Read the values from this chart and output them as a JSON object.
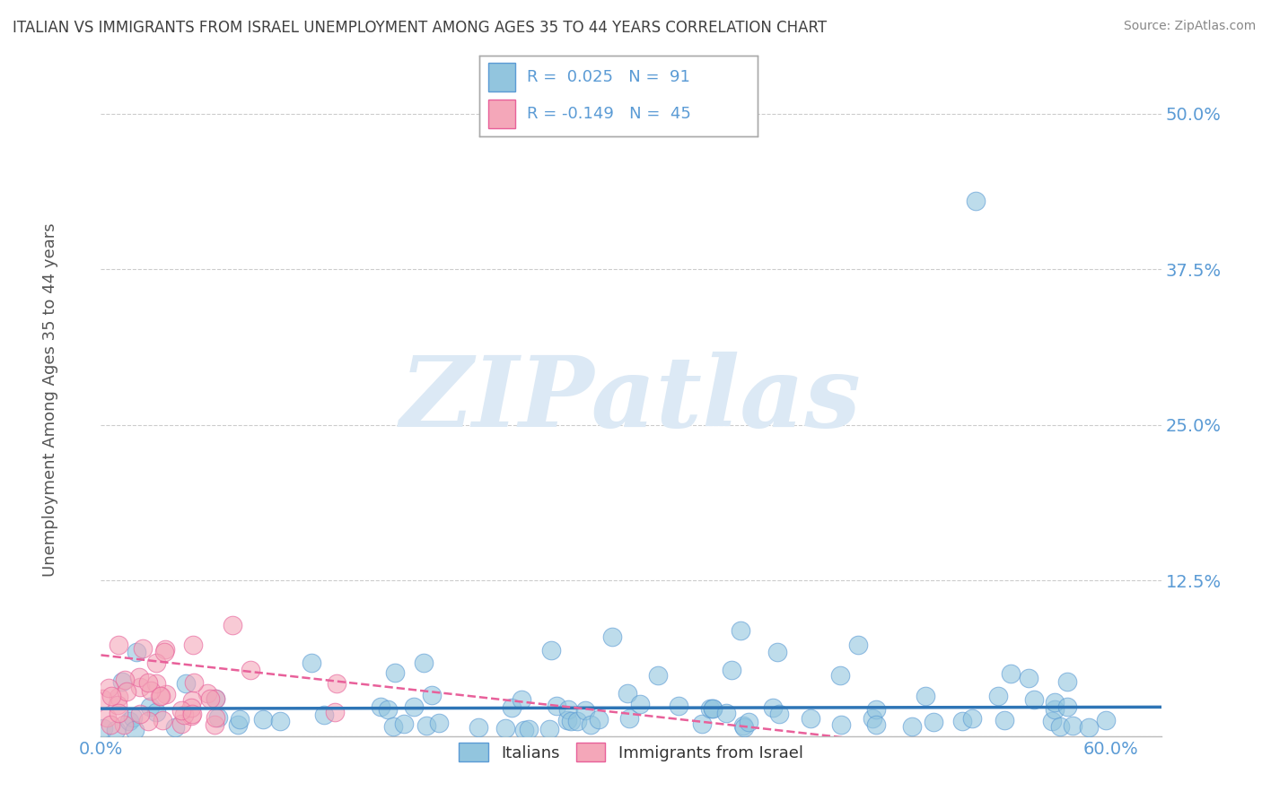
{
  "title": "ITALIAN VS IMMIGRANTS FROM ISRAEL UNEMPLOYMENT AMONG AGES 35 TO 44 YEARS CORRELATION CHART",
  "source": "Source: ZipAtlas.com",
  "ylabel": "Unemployment Among Ages 35 to 44 years",
  "ylim": [
    0,
    0.54
  ],
  "xlim": [
    0,
    0.63
  ],
  "yticks": [
    0.0,
    0.125,
    0.25,
    0.375,
    0.5
  ],
  "ytick_labels": [
    "",
    "12.5%",
    "25.0%",
    "37.5%",
    "50.0%"
  ],
  "label_italians": "Italians",
  "label_israel": "Immigrants from Israel",
  "blue_color": "#92c5de",
  "blue_edge_color": "#5b9bd5",
  "pink_color": "#f4a7b9",
  "pink_edge_color": "#e8609a",
  "blue_line_color": "#2e75b6",
  "pink_line_color": "#e8609a",
  "watermark": "ZIPatlas",
  "watermark_color": "#dce9f5",
  "background_color": "#ffffff",
  "grid_color": "#cccccc",
  "title_color": "#404040",
  "axis_label_color": "#5b9bd5",
  "legend_text_color": "#404040",
  "legend_r_color": "#5b9bd5",
  "source_color": "#888888",
  "blue_R": 0.025,
  "blue_N": 91,
  "pink_R": -0.149,
  "pink_N": 45
}
